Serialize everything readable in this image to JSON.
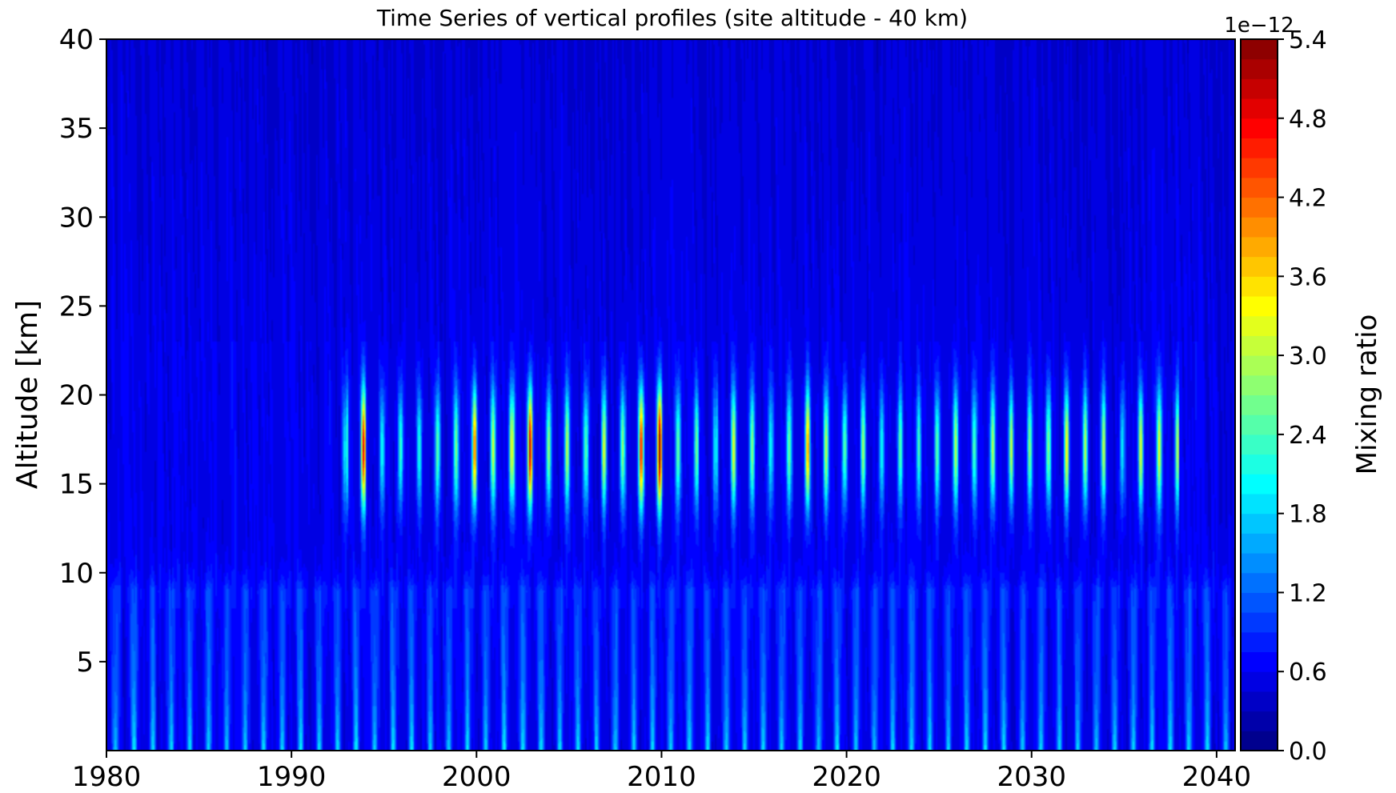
{
  "chart_data": {
    "type": "heatmap",
    "title": "Time Series of vertical profiles (site altitude - 40 km)",
    "xlabel": "",
    "ylabel": "Altitude [km]",
    "xlim": [
      1980,
      2041
    ],
    "ylim": [
      0,
      40
    ],
    "x_ticks": [
      "1980",
      "1990",
      "2000",
      "2010",
      "2020",
      "2030",
      "2040"
    ],
    "y_ticks": [
      "5",
      "10",
      "15",
      "20",
      "25",
      "30",
      "35",
      "40"
    ],
    "colorbar": {
      "label": "Mixing ratio",
      "offset_text": "1e−12",
      "scale": 1e-12,
      "range": [
        0.0,
        5.4
      ],
      "ticks": [
        "0.0",
        "0.6",
        "1.2",
        "1.8",
        "2.4",
        "3.0",
        "3.6",
        "4.2",
        "4.8",
        "5.4"
      ],
      "levels": 36,
      "colormap": "jet"
    },
    "features": {
      "surface_layer": {
        "altitude_km": [
          0,
          8
        ],
        "period_years": 1,
        "typical_peak_mixing_ratio": 1.9
      },
      "stratospheric_band": {
        "altitude_km": [
          10,
          22
        ],
        "center_km": 17,
        "period_years": 1,
        "years_active": [
          1992.5,
          2038
        ],
        "notable_maxima": [
          {
            "year": 1993.5,
            "value": 4.6
          },
          {
            "year": 2000.0,
            "value": 4.2
          },
          {
            "year": 2002.9,
            "value": 5.0
          },
          {
            "year": 2008.9,
            "value": 4.6
          },
          {
            "year": 2009.9,
            "value": 5.4
          },
          {
            "year": 2017.8,
            "value": 3.9
          },
          {
            "year": 2031.9,
            "value": 3.4
          }
        ]
      },
      "background_mixing_ratio": 0.5
    }
  }
}
